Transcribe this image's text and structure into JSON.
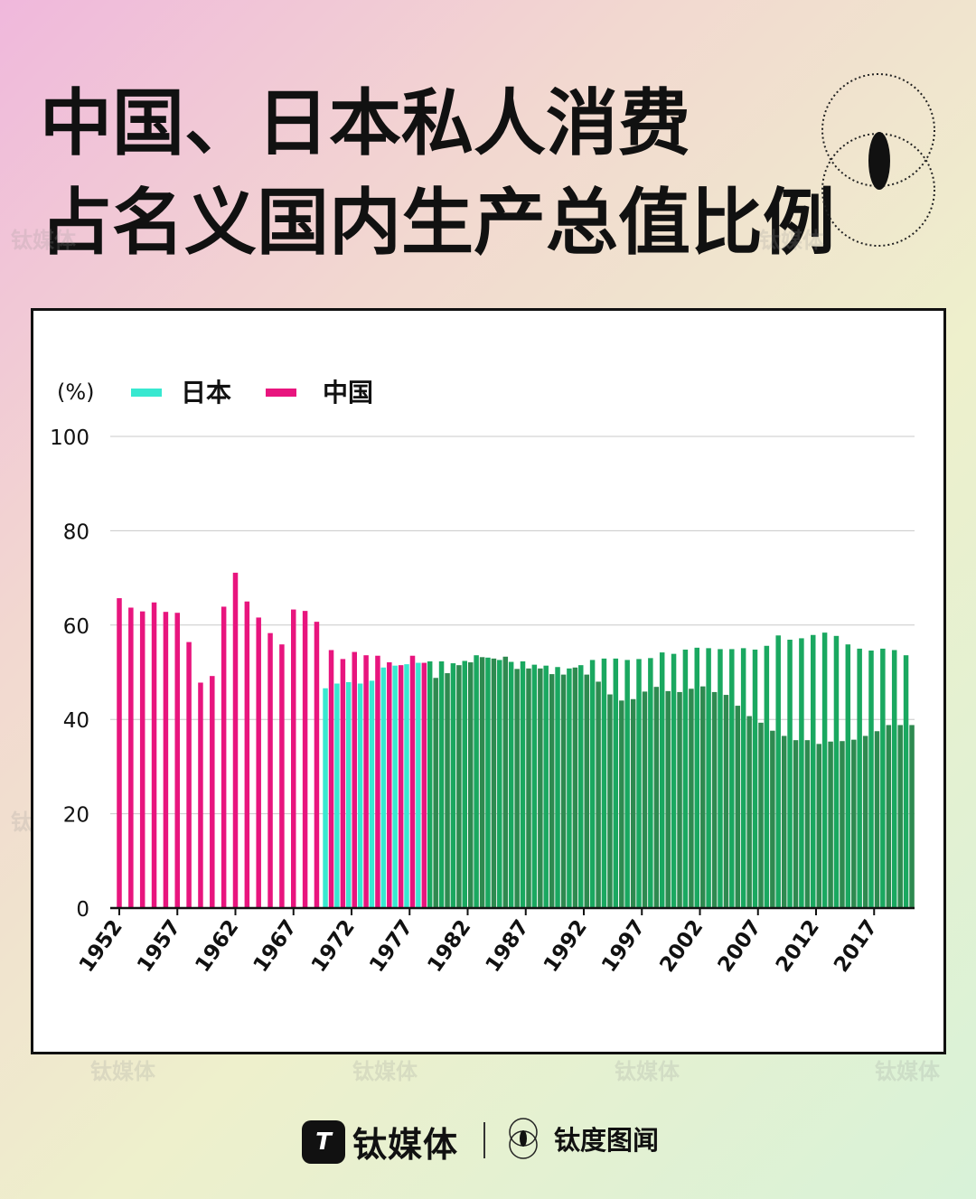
{
  "title": {
    "line1": "中国、日本私人消费",
    "line2": "占名义国内生产总值比例"
  },
  "watermark_text": "钛媒体",
  "footer": {
    "brand_badge": "T",
    "brand_name": "钛媒体",
    "brand2_name": "钛度图闻"
  },
  "colors": {
    "japan_before_overlap": "#38e8d0",
    "japan_overlap": "#1aa860",
    "china": "#e8157e",
    "china_overlap": "#2e8a50"
  },
  "chart_data": {
    "type": "bar",
    "yunit": "(%)",
    "ylim": [
      0,
      100
    ],
    "yticks": [
      0,
      20,
      40,
      60,
      80,
      100
    ],
    "grid": true,
    "legend_position": "top-left",
    "x_tick_labels": [
      "1952",
      "1957",
      "1962",
      "1967",
      "1972",
      "1977",
      "1982",
      "1987",
      "1992",
      "1997",
      "2002",
      "2007",
      "2012",
      "2017"
    ],
    "x_start": 1952,
    "x_end": 2020,
    "series": [
      {
        "name": "日本",
        "start_year": 1970,
        "values": [
          46.6,
          47.6,
          47.9,
          47.6,
          48.2,
          51.0,
          51.4,
          51.7,
          52.0,
          52.3,
          52.3,
          51.9,
          52.4,
          53.6,
          53.1,
          52.6,
          52.2,
          52.3,
          51.6,
          51.4,
          51.1,
          50.8,
          51.5,
          52.6,
          52.9,
          52.9,
          52.6,
          52.8,
          53.0,
          54.2,
          53.9,
          54.8,
          55.2,
          55.1,
          54.9,
          54.9,
          55.1,
          54.8,
          55.6,
          57.8,
          56.9,
          57.2,
          57.9,
          58.4,
          57.7,
          55.9,
          55.0,
          54.6,
          55.0,
          54.7,
          53.6
        ]
      },
      {
        "name": "中国",
        "start_year": 1952,
        "values": [
          65.7,
          63.7,
          62.9,
          64.8,
          62.8,
          62.6,
          56.4,
          47.8,
          49.2,
          63.9,
          71.1,
          65.0,
          61.6,
          58.3,
          55.9,
          63.3,
          63.0,
          60.7,
          54.7,
          52.8,
          54.3,
          53.6,
          53.5,
          52.1,
          51.5,
          53.5,
          52.0,
          48.8,
          49.8,
          51.5,
          52.1,
          53.2,
          52.9,
          53.3,
          50.7,
          50.8,
          50.8,
          49.6,
          49.5,
          51.0,
          49.5,
          48.0,
          45.3,
          44.0,
          44.3,
          45.9,
          46.9,
          46.0,
          45.8,
          46.5,
          47.0,
          45.8,
          45.2,
          42.9,
          40.7,
          39.3,
          37.6,
          36.5,
          35.6,
          35.6,
          34.8,
          35.3,
          35.4,
          35.7,
          36.5,
          37.5,
          38.8,
          38.8,
          38.8,
          39.2,
          37.8
        ]
      }
    ]
  }
}
